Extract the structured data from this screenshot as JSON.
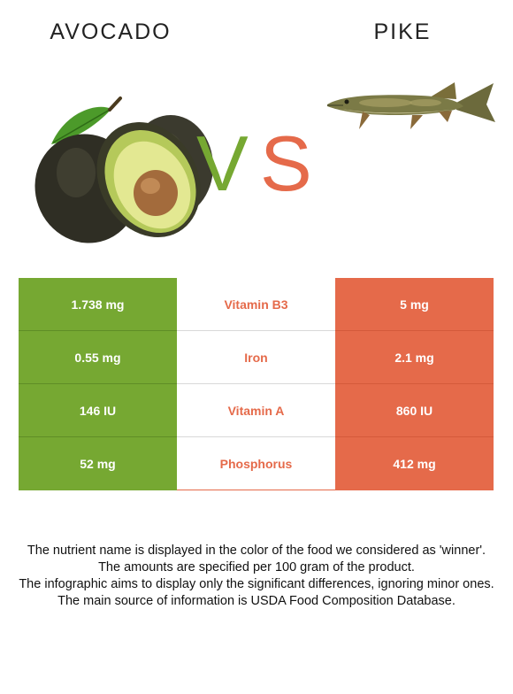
{
  "food_left": {
    "name": "AVOCADO",
    "color": "#76a832",
    "image": "avocado-image"
  },
  "food_right": {
    "name": "PIKE",
    "color": "#e56a4a",
    "image": "pike-fish-image"
  },
  "vs": {
    "v": "V",
    "s": "S"
  },
  "rows": [
    {
      "left": "1.738 mg",
      "nutrient": "Vitamin B3",
      "right": "5 mg",
      "winner": "right"
    },
    {
      "left": "0.55 mg",
      "nutrient": "Iron",
      "right": "2.1 mg",
      "winner": "right"
    },
    {
      "left": "146 IU",
      "nutrient": "Vitamin A",
      "right": "860 IU",
      "winner": "right"
    },
    {
      "left": "52 mg",
      "nutrient": "Phosphorus",
      "right": "412 mg",
      "winner": "right"
    }
  ],
  "footnote": [
    "The nutrient name is displayed in the color of the food we considered as 'winner'.",
    "The amounts are specified per 100 gram of the product.",
    "The infographic aims to display only the significant differences, ignoring minor ones.",
    "The main source of information is USDA Food Composition Database."
  ]
}
